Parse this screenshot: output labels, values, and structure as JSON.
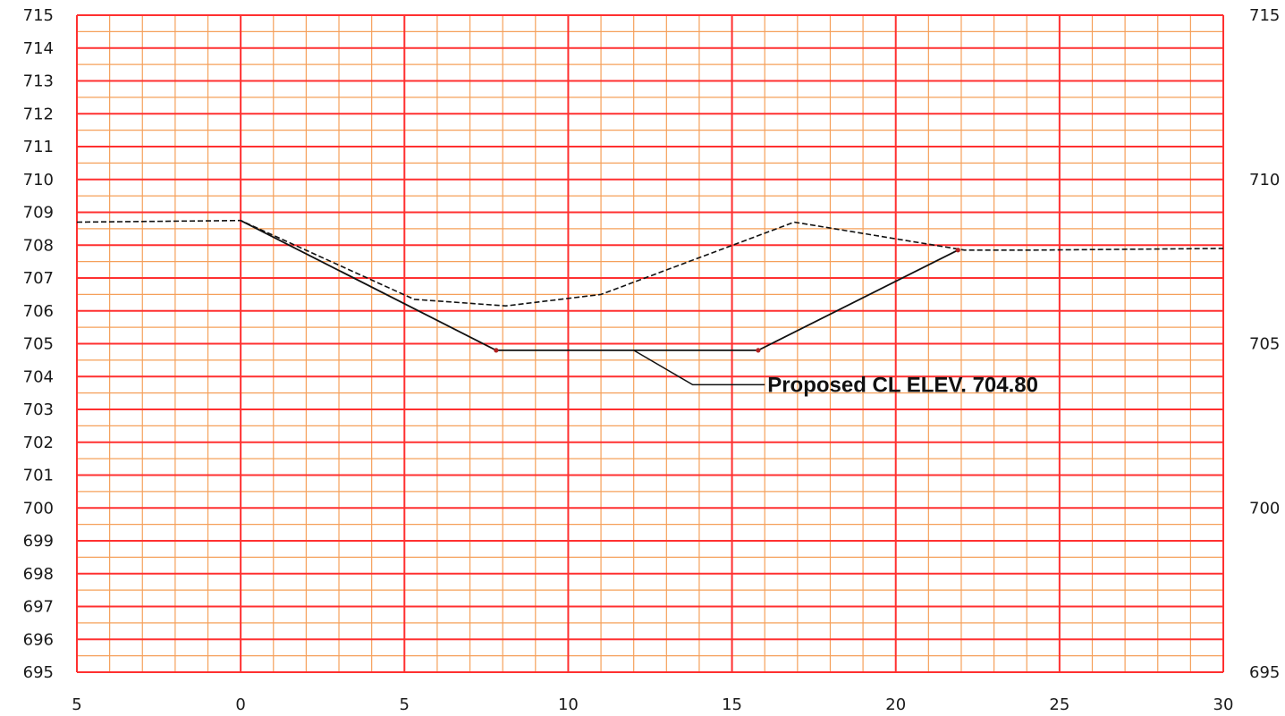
{
  "chart_data": {
    "type": "line",
    "title": "",
    "xlabel": "",
    "ylabel": "",
    "x_tick_labels": [
      "5",
      "0",
      "5",
      "10",
      "15",
      "20",
      "25",
      "30"
    ],
    "x_tick_values": [
      -5,
      0,
      5,
      10,
      15,
      20,
      25,
      30
    ],
    "xlim": [
      -5,
      30
    ],
    "ylim": [
      695,
      715
    ],
    "left_y_ticks": [
      "715",
      "714",
      "713",
      "712",
      "711",
      "710",
      "709",
      "708",
      "707",
      "706",
      "705",
      "704",
      "703",
      "702",
      "701",
      "700",
      "699",
      "698",
      "697",
      "696",
      "695"
    ],
    "right_y_ticks": [
      "715",
      "710",
      "705",
      "700",
      "695"
    ],
    "grid": true,
    "grid_major_color": "#ff3030",
    "grid_minor_color": "#f5a05a",
    "series": [
      {
        "style": "dashed",
        "color": "#111111",
        "x": [
          -5,
          0,
          5.3,
          8.1,
          11,
          16.9,
          22.1,
          24.2,
          30
        ],
        "y": [
          708.7,
          708.75,
          706.35,
          706.15,
          706.5,
          708.7,
          707.85,
          707.85,
          707.9
        ]
      },
      {
        "style": "solid",
        "color": "#111111",
        "x": [
          0,
          7.8,
          15.8,
          21.9
        ],
        "y": [
          708.75,
          704.8,
          704.8,
          707.85
        ]
      }
    ],
    "vertex_markers": {
      "color": "#b22222",
      "x": [
        7.8,
        15.8,
        21.9
      ],
      "y": [
        704.8,
        704.8,
        707.85
      ]
    },
    "annotations": [
      {
        "text": "Proposed CL ELEV. 704.80",
        "leader_x": [
          12,
          13.8,
          16
        ],
        "leader_y": [
          704.8,
          703.75,
          703.75
        ],
        "text_x": 16,
        "text_y": 703.75
      }
    ]
  }
}
